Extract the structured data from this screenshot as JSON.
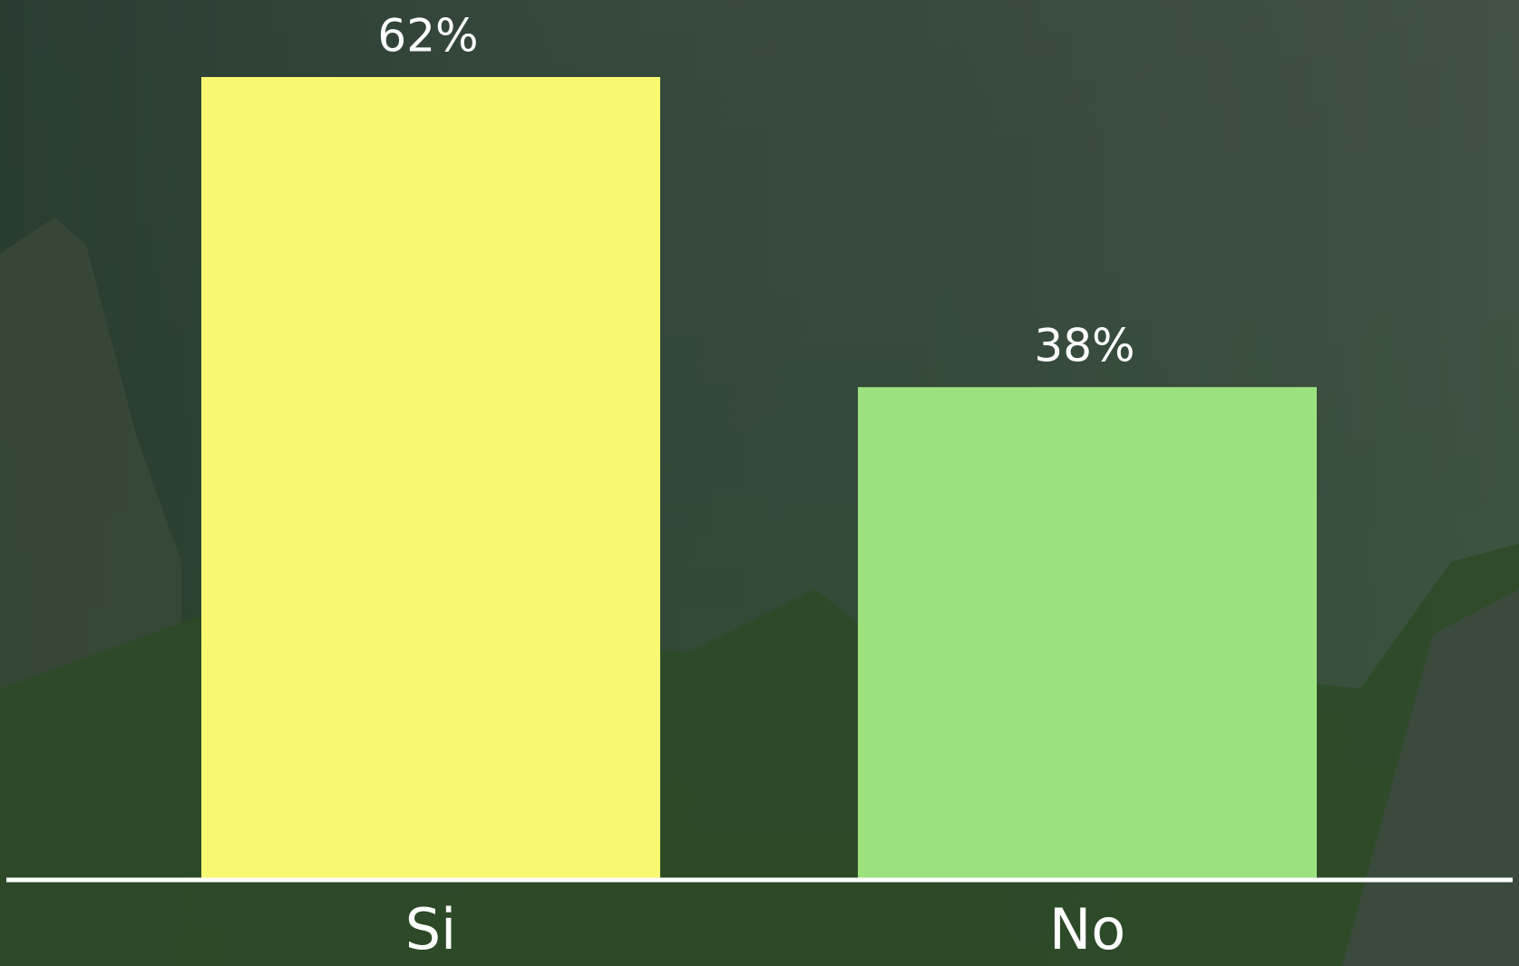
{
  "chart_data": {
    "type": "bar",
    "categories": [
      "Si",
      "No"
    ],
    "values": [
      62,
      38
    ],
    "value_labels": [
      "62%",
      "38%"
    ],
    "colors": [
      "#f9f871",
      "#9be27f"
    ]
  }
}
